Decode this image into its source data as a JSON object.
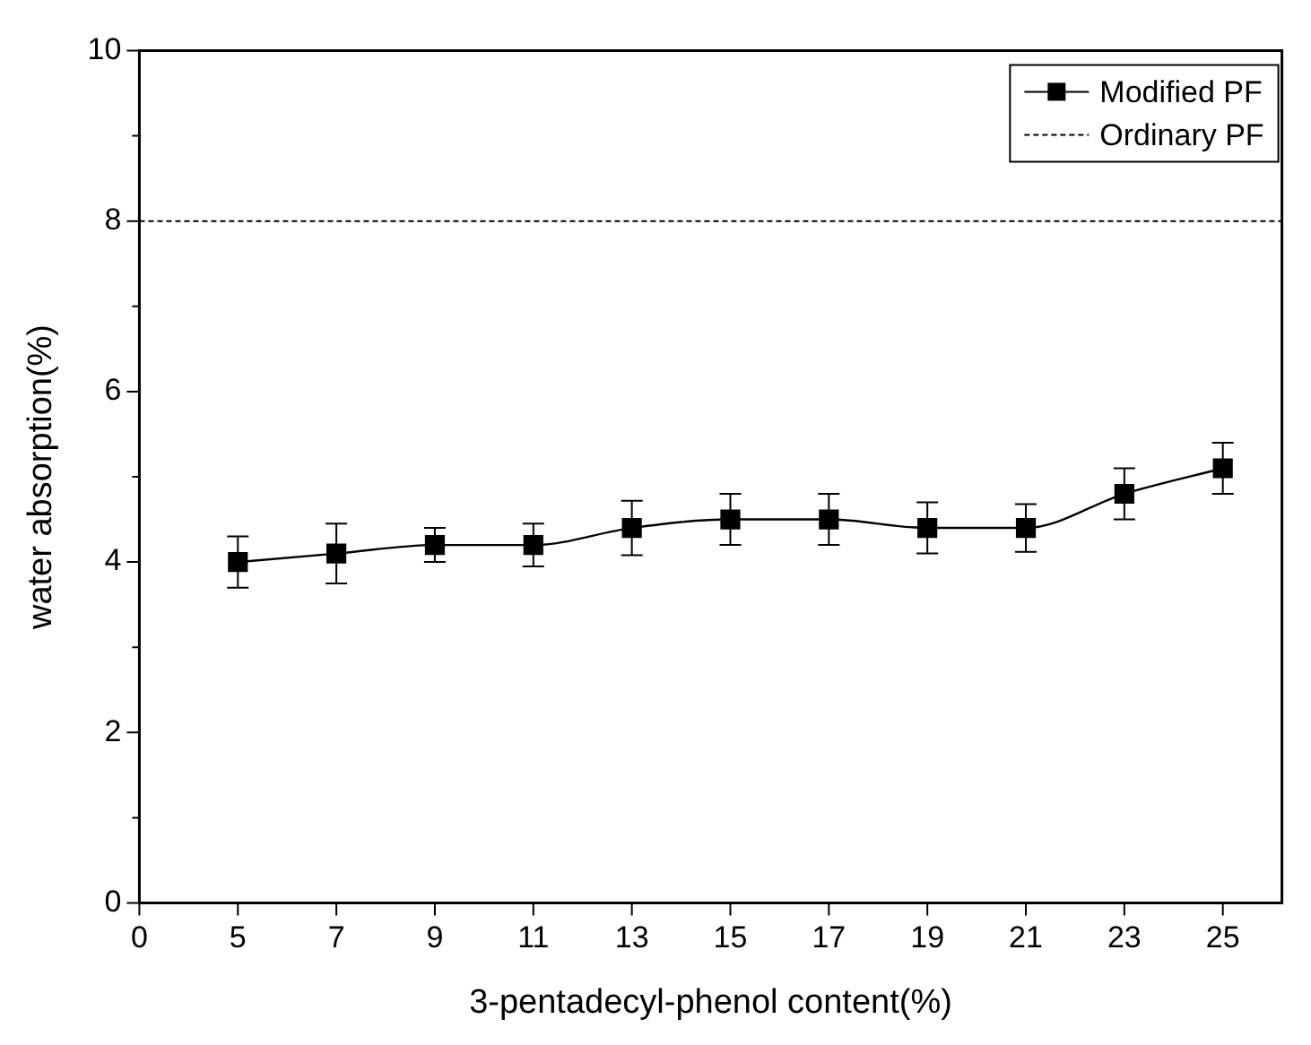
{
  "chart_data": {
    "type": "line",
    "xlabel": "3-pentadecyl-phenol content(%)",
    "ylabel": "water absorption(%)",
    "categories": [
      "0",
      "5",
      "7",
      "9",
      "11",
      "13",
      "15",
      "17",
      "19",
      "21",
      "23",
      "25"
    ],
    "series": [
      {
        "name": "Modified PF",
        "color": "#000000",
        "values": [
          null,
          4.0,
          4.1,
          4.2,
          4.2,
          4.4,
          4.5,
          4.5,
          4.4,
          4.4,
          4.8,
          5.1
        ],
        "errors": [
          null,
          0.3,
          0.35,
          0.2,
          0.25,
          0.32,
          0.3,
          0.3,
          0.3,
          0.28,
          0.3,
          0.3
        ],
        "marker": "square",
        "line_style": "solid"
      }
    ],
    "ref_lines": [
      {
        "axis": "y",
        "value": 8,
        "label": "Ordinary PF",
        "color": "#000000",
        "line_style": "dashed"
      }
    ],
    "ylim": [
      0,
      10
    ],
    "yticks": [
      0,
      {
        "value": 1,
        "label": null
      },
      2,
      {
        "value": 3,
        "label": null
      },
      4,
      {
        "value": 5,
        "label": null
      },
      6,
      {
        "value": 7,
        "label": null
      },
      8,
      {
        "value": 9,
        "label": null
      },
      10
    ],
    "grid": false,
    "legend": "top right"
  }
}
